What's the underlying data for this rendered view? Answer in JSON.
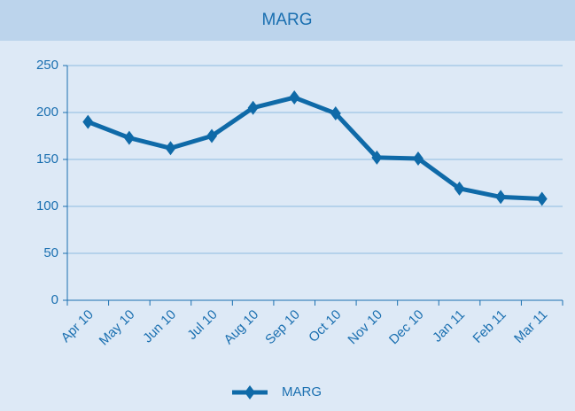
{
  "chart_data": {
    "type": "line",
    "title": "MARG",
    "categories": [
      "Apr 10",
      "May 10",
      "Jun 10",
      "Jul 10",
      "Aug 10",
      "Sep 10",
      "Oct 10",
      "Nov 10",
      "Dec 10",
      "Jan 11",
      "Feb 11",
      "Mar 11"
    ],
    "series": [
      {
        "name": "MARG",
        "color": "#0f6aa8",
        "values": [
          190,
          173,
          162,
          175,
          205,
          216,
          199,
          152,
          151,
          119,
          110,
          108
        ]
      }
    ],
    "ylim": [
      0,
      250
    ],
    "yticks": [
      0,
      50,
      100,
      150,
      200,
      250
    ],
    "grid": true,
    "legend": "bottom"
  }
}
